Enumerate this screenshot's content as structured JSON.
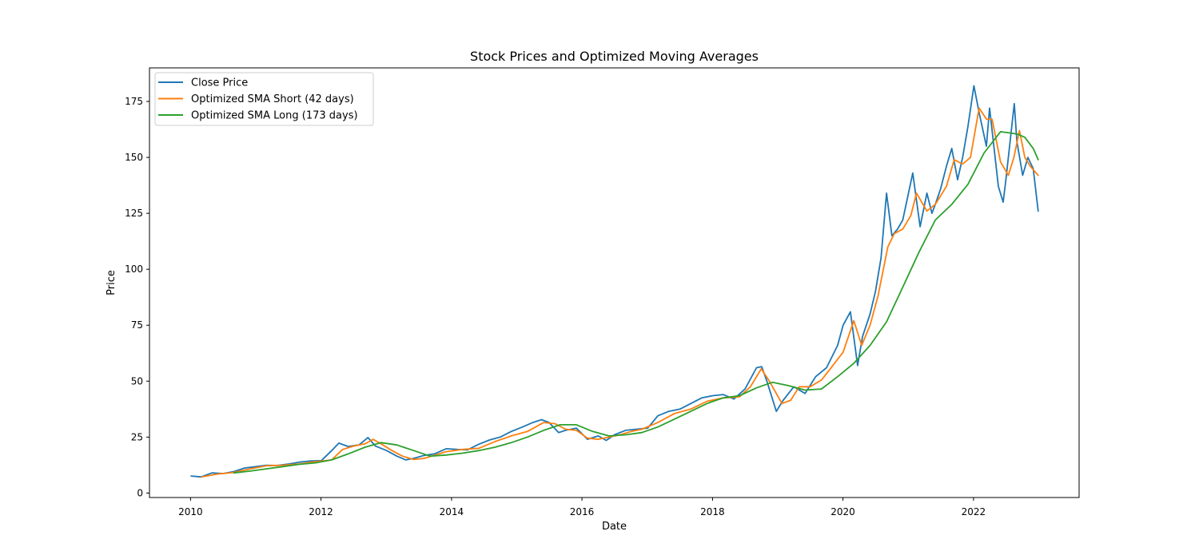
{
  "chart_data": {
    "type": "line",
    "title": "Stock Prices and Optimized Moving Averages",
    "xlabel": "Date",
    "ylabel": "Price",
    "xlim": [
      "2009-05-16",
      "2023-08-15"
    ],
    "ylim": [
      -2,
      190
    ],
    "x_ticks": [
      "2010",
      "2012",
      "2014",
      "2016",
      "2018",
      "2020",
      "2022"
    ],
    "y_ticks": [
      0,
      25,
      50,
      75,
      100,
      125,
      150,
      175
    ],
    "grid": false,
    "legend": "upper-left",
    "series": [
      {
        "name": "Close Price",
        "color": "#1f77b4",
        "x": [
          "2010-01-04",
          "2010-03-01",
          "2010-05-01",
          "2010-07-01",
          "2010-09-01",
          "2010-11-01",
          "2011-01-03",
          "2011-03-01",
          "2011-05-02",
          "2011-07-01",
          "2011-09-01",
          "2011-11-01",
          "2012-01-03",
          "2012-03-01",
          "2012-04-10",
          "2012-06-01",
          "2012-08-01",
          "2012-09-20",
          "2012-11-01",
          "2013-01-02",
          "2013-03-01",
          "2013-04-20",
          "2013-06-03",
          "2013-08-01",
          "2013-10-01",
          "2013-12-02",
          "2014-02-03",
          "2014-04-01",
          "2014-06-02",
          "2014-08-01",
          "2014-10-01",
          "2014-12-01",
          "2015-02-02",
          "2015-04-01",
          "2015-05-20",
          "2015-07-01",
          "2015-08-24",
          "2015-10-01",
          "2015-12-01",
          "2016-02-01",
          "2016-04-01",
          "2016-05-16",
          "2016-07-01",
          "2016-09-01",
          "2016-11-01",
          "2017-01-03",
          "2017-03-01",
          "2017-05-01",
          "2017-07-03",
          "2017-09-01",
          "2017-11-01",
          "2018-01-02",
          "2018-03-01",
          "2018-05-01",
          "2018-07-02",
          "2018-09-04",
          "2018-10-03",
          "2018-11-01",
          "2018-12-24",
          "2019-02-01",
          "2019-04-01",
          "2019-06-03",
          "2019-08-01",
          "2019-10-01",
          "2019-12-02",
          "2020-01-02",
          "2020-02-12",
          "2020-03-23",
          "2020-04-20",
          "2020-06-01",
          "2020-07-01",
          "2020-08-01",
          "2020-09-01",
          "2020-10-01",
          "2020-11-02",
          "2020-12-01",
          "2021-01-26",
          "2021-03-08",
          "2021-04-15",
          "2021-05-13",
          "2021-06-01",
          "2021-07-01",
          "2021-08-02",
          "2021-09-01",
          "2021-10-04",
          "2021-11-01",
          "2021-12-01",
          "2022-01-03",
          "2022-02-01",
          "2022-03-14",
          "2022-04-01",
          "2022-05-20",
          "2022-06-16",
          "2022-07-01",
          "2022-08-17",
          "2022-09-01",
          "2022-10-03",
          "2022-11-01",
          "2022-12-01",
          "2022-12-29"
        ],
        "values": [
          7.6,
          7.2,
          9.0,
          8.7,
          9.6,
          11.2,
          11.8,
          12.4,
          12.3,
          12.9,
          13.8,
          14.3,
          14.5,
          19.0,
          22.3,
          20.8,
          21.5,
          24.8,
          21.0,
          19.0,
          16.5,
          14.8,
          15.5,
          16.8,
          17.6,
          19.8,
          19.5,
          19.3,
          21.8,
          23.7,
          25.0,
          27.5,
          29.5,
          31.5,
          32.8,
          31.5,
          27.0,
          28.0,
          29.0,
          24.0,
          25.5,
          23.5,
          26.0,
          28.0,
          28.5,
          29.0,
          34.5,
          36.5,
          37.5,
          40.0,
          42.5,
          43.5,
          44.0,
          42.0,
          46.5,
          56.0,
          56.5,
          50.0,
          36.5,
          41.5,
          47.5,
          44.5,
          52.0,
          56.0,
          66.0,
          75.0,
          81.0,
          57.0,
          70.0,
          80.0,
          90.0,
          105.0,
          134.0,
          115.0,
          118.0,
          122.0,
          143.0,
          119.0,
          134.0,
          125.0,
          129.0,
          136.0,
          146.0,
          154.0,
          140.0,
          150.0,
          164.0,
          182.0,
          170.0,
          155.0,
          172.0,
          137.0,
          130.0,
          140.0,
          174.0,
          157.0,
          142.0,
          150.0,
          145.0,
          126.0
        ]
      },
      {
        "name": "Optimized SMA Short (42 days)",
        "color": "#ff7f0e",
        "x": [
          "2010-03-04",
          "2010-06-01",
          "2010-09-01",
          "2010-12-01",
          "2011-03-01",
          "2011-06-01",
          "2011-09-01",
          "2011-12-01",
          "2012-03-01",
          "2012-05-01",
          "2012-07-02",
          "2012-09-04",
          "2012-10-19",
          "2012-12-03",
          "2013-02-01",
          "2013-04-01",
          "2013-06-03",
          "2013-08-01",
          "2013-10-01",
          "2013-12-02",
          "2014-03-03",
          "2014-06-02",
          "2014-09-02",
          "2014-12-01",
          "2015-03-02",
          "2015-06-01",
          "2015-08-03",
          "2015-10-01",
          "2015-12-01",
          "2016-02-01",
          "2016-04-01",
          "2016-06-01",
          "2016-08-01",
          "2016-10-03",
          "2016-12-01",
          "2017-03-01",
          "2017-06-01",
          "2017-09-01",
          "2017-12-01",
          "2018-03-01",
          "2018-06-01",
          "2018-08-01",
          "2018-10-01",
          "2018-11-15",
          "2019-01-25",
          "2019-03-15",
          "2019-05-01",
          "2019-07-01",
          "2019-09-03",
          "2019-11-01",
          "2020-01-02",
          "2020-03-02",
          "2020-04-15",
          "2020-06-01",
          "2020-07-15",
          "2020-09-08",
          "2020-10-15",
          "2020-12-01",
          "2021-01-15",
          "2021-02-16",
          "2021-04-15",
          "2021-06-01",
          "2021-08-02",
          "2021-09-15",
          "2021-11-01",
          "2021-12-15",
          "2022-02-01",
          "2022-03-15",
          "2022-04-15",
          "2022-06-01",
          "2022-07-15",
          "2022-08-15",
          "2022-09-15",
          "2022-10-15",
          "2022-11-15",
          "2022-12-29"
        ],
        "values": [
          7.2,
          8.5,
          9.2,
          10.8,
          12.2,
          12.4,
          13.0,
          14.0,
          14.8,
          19.5,
          21.0,
          22.0,
          24.0,
          22.0,
          19.0,
          16.5,
          15.0,
          15.5,
          17.0,
          18.5,
          19.5,
          20.0,
          23.0,
          25.5,
          27.5,
          31.5,
          31.0,
          28.5,
          28.0,
          24.5,
          24.0,
          25.0,
          26.0,
          27.5,
          28.5,
          31.5,
          35.5,
          37.5,
          41.0,
          42.5,
          43.0,
          47.5,
          55.5,
          50.0,
          40.0,
          41.5,
          47.5,
          47.5,
          50.5,
          56.5,
          63.0,
          77.0,
          66.0,
          75.0,
          88.0,
          110.0,
          116.0,
          118.0,
          124.0,
          134.0,
          126.0,
          129.0,
          137.0,
          149.0,
          147.0,
          150.0,
          172.0,
          167.0,
          167.0,
          148.0,
          142.0,
          150.0,
          162.0,
          150.0,
          146.0,
          142.0
        ]
      },
      {
        "name": "Optimized SMA Long (173 days)",
        "color": "#2ca02c",
        "x": [
          "2010-09-01",
          "2010-12-01",
          "2011-03-01",
          "2011-06-01",
          "2011-09-01",
          "2011-12-01",
          "2012-03-01",
          "2012-06-01",
          "2012-09-04",
          "2012-12-03",
          "2013-03-01",
          "2013-06-03",
          "2013-09-03",
          "2013-12-02",
          "2014-03-03",
          "2014-06-02",
          "2014-09-02",
          "2014-12-01",
          "2015-03-02",
          "2015-06-01",
          "2015-09-01",
          "2015-12-01",
          "2016-03-01",
          "2016-06-01",
          "2016-09-01",
          "2016-12-01",
          "2017-03-01",
          "2017-06-01",
          "2017-09-01",
          "2017-12-01",
          "2018-03-01",
          "2018-06-01",
          "2018-09-04",
          "2018-12-03",
          "2019-03-01",
          "2019-06-03",
          "2019-09-03",
          "2019-12-02",
          "2020-03-02",
          "2020-06-01",
          "2020-09-01",
          "2020-12-01",
          "2021-03-01",
          "2021-06-01",
          "2021-09-01",
          "2021-12-01",
          "2022-03-01",
          "2022-06-01",
          "2022-09-01",
          "2022-10-15",
          "2022-12-01",
          "2022-12-29"
        ],
        "values": [
          9.0,
          9.8,
          10.8,
          11.8,
          12.8,
          13.5,
          14.8,
          17.5,
          20.5,
          22.5,
          21.5,
          19.0,
          16.5,
          17.0,
          17.8,
          19.0,
          20.5,
          22.5,
          25.0,
          28.0,
          30.5,
          30.5,
          27.5,
          25.5,
          26.0,
          27.0,
          29.5,
          33.0,
          36.5,
          40.0,
          42.5,
          43.5,
          47.0,
          49.5,
          48.0,
          46.0,
          46.5,
          52.0,
          58.0,
          66.0,
          76.5,
          92.0,
          107.5,
          122.0,
          129.0,
          138.0,
          152.0,
          161.5,
          160.5,
          159.0,
          154.0,
          149.0
        ]
      }
    ]
  }
}
